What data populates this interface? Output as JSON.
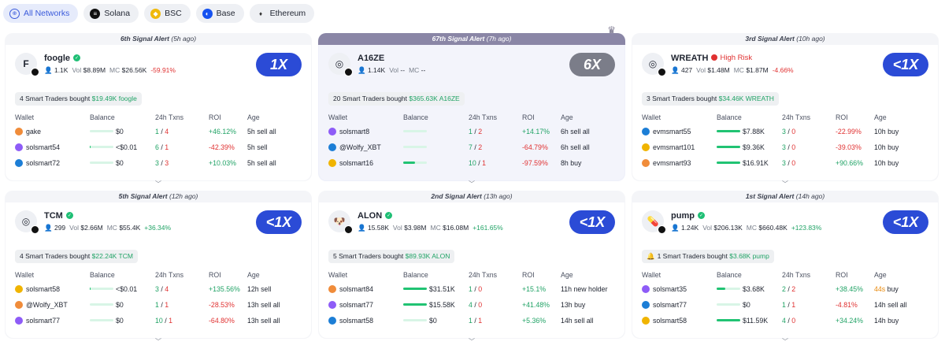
{
  "filters": [
    {
      "label": "All Networks",
      "icon": "globe-icon",
      "active": true
    },
    {
      "label": "Solana",
      "icon": "solana-icon"
    },
    {
      "label": "BSC",
      "icon": "bsc-icon"
    },
    {
      "label": "Base",
      "icon": "base-icon"
    },
    {
      "label": "Ethereum",
      "icon": "ethereum-icon"
    }
  ],
  "table_headers": {
    "wallet": "Wallet",
    "balance": "Balance",
    "txns": "24h Txns",
    "roi": "ROI",
    "age": "Age"
  },
  "cards": [
    {
      "alert": "6th Signal Alert",
      "ago": "(5h ago)",
      "token": "foogle",
      "verified": true,
      "logo": "F",
      "holders": "1.1K",
      "vol_label": "Vol",
      "vol": "$8.89M",
      "mc_label": "MC",
      "mc": "$26.56K",
      "change": "-59.91%",
      "multiplier": "1X",
      "bought_prefix": "4 Smart Traders bought",
      "bought_amount": "$19.49K foogle",
      "rows": [
        {
          "wallet": "gake",
          "balance": "$0",
          "buys": "1",
          "sep": "/",
          "sells": "4",
          "roi": "+46.12%",
          "age": "5h sell all",
          "bar": 0
        },
        {
          "wallet": "solsmart54",
          "balance": "<$0.01",
          "buys": "6",
          "sep": "/",
          "sells": "1",
          "roi": "-42.39%",
          "age": "5h sell",
          "bar": 0.02
        },
        {
          "wallet": "solsmart72",
          "balance": "$0",
          "buys": "3",
          "sep": "/",
          "sells": "3",
          "roi": "+10.03%",
          "age": "5h sell all",
          "bar": 0
        }
      ]
    },
    {
      "alert": "67th Signal Alert",
      "ago": "(7h ago)",
      "token": "A16ZE",
      "verified": false,
      "logo": "◎",
      "holders": "1.14K",
      "vol_label": "Vol",
      "vol": "--",
      "mc_label": "MC",
      "mc": "--",
      "change": "",
      "multiplier": "6X",
      "bought_prefix": "20 Smart Traders bought",
      "bought_amount": "$365.63K A16ZE",
      "rows": [
        {
          "wallet": "solsmart8",
          "balance": "",
          "buys": "1",
          "sep": "/",
          "sells": "2",
          "roi": "+14.17%",
          "age": "6h sell all",
          "bar": 0
        },
        {
          "wallet": "@Wolfy_XBT",
          "balance": "",
          "buys": "7",
          "sep": "/",
          "sells": "2",
          "roi": "-64.79%",
          "age": "6h sell all",
          "bar": 0
        },
        {
          "wallet": "solsmart16",
          "balance": "",
          "buys": "10",
          "sep": "/",
          "sells": "1",
          "roi": "-97.59%",
          "age": "8h buy",
          "bar": 0.5
        }
      ]
    },
    {
      "alert": "3rd Signal Alert",
      "ago": "(10h ago)",
      "token": "WREATH",
      "verified": false,
      "high_risk": "High Risk",
      "logo": "◎",
      "holders": "427",
      "vol_label": "Vol",
      "vol": "$1.48M",
      "mc_label": "MC",
      "mc": "$1.87M",
      "change": "-4.66%",
      "multiplier": "<1X",
      "bought_prefix": "3 Smart Traders bought",
      "bought_amount": "$34.46K WREATH",
      "rows": [
        {
          "wallet": "evmsmart55",
          "balance": "$7.88K",
          "buys": "3",
          "sep": "/",
          "sells": "0",
          "roi": "-22.99%",
          "age": "10h buy",
          "bar": 1
        },
        {
          "wallet": "evmsmart101",
          "balance": "$9.36K",
          "buys": "3",
          "sep": "/",
          "sells": "0",
          "roi": "-39.03%",
          "age": "10h buy",
          "bar": 1
        },
        {
          "wallet": "evmsmart93",
          "balance": "$16.91K",
          "buys": "3",
          "sep": "/",
          "sells": "0",
          "roi": "+90.66%",
          "age": "10h buy",
          "bar": 1
        }
      ]
    },
    {
      "alert": "5th Signal Alert",
      "ago": "(12h ago)",
      "token": "TCM",
      "verified": true,
      "logo": "◎",
      "holders": "299",
      "vol_label": "Vol",
      "vol": "$2.66M",
      "mc_label": "MC",
      "mc": "$55.4K",
      "change": "+36.34%",
      "multiplier": "<1X",
      "bought_prefix": "4 Smart Traders bought",
      "bought_amount": "$22.24K TCM",
      "rows": [
        {
          "wallet": "solsmart58",
          "balance": "<$0.01",
          "buys": "3",
          "sep": "/",
          "sells": "4",
          "roi": "+135.56%",
          "age": "12h sell",
          "bar": 0.02
        },
        {
          "wallet": "@Wolfy_XBT",
          "balance": "$0",
          "buys": "1",
          "sep": "/",
          "sells": "1",
          "roi": "-28.53%",
          "age": "13h sell all",
          "bar": 0
        },
        {
          "wallet": "solsmart77",
          "balance": "$0",
          "buys": "10",
          "sep": "/",
          "sells": "1",
          "roi": "-64.80%",
          "age": "13h sell all",
          "bar": 0
        }
      ]
    },
    {
      "alert": "2nd Signal Alert",
      "ago": "(13h ago)",
      "token": "ALON",
      "verified": true,
      "logo": "🐶",
      "holders": "15.58K",
      "vol_label": "Vol",
      "vol": "$3.98M",
      "mc_label": "MC",
      "mc": "$16.08M",
      "change": "+161.65%",
      "multiplier": "<1X",
      "bought_prefix": "5 Smart Traders bought",
      "bought_amount": "$89.93K ALON",
      "rows": [
        {
          "wallet": "solsmart84",
          "balance": "$31.51K",
          "buys": "1",
          "sep": "/",
          "sells": "0",
          "roi": "+15.1%",
          "age": "11h new holder",
          "bar": 1
        },
        {
          "wallet": "solsmart77",
          "balance": "$15.58K",
          "buys": "4",
          "sep": "/",
          "sells": "0",
          "roi": "+41.48%",
          "age": "13h buy",
          "bar": 1
        },
        {
          "wallet": "solsmart58",
          "balance": "$0",
          "buys": "1",
          "sep": "/",
          "sells": "1",
          "roi": "+5.36%",
          "age": "14h sell all",
          "bar": 0
        }
      ]
    },
    {
      "alert": "1st Signal Alert",
      "ago": "(14h ago)",
      "token": "pump",
      "verified": true,
      "logo": "💊",
      "holders": "1.24K",
      "vol_label": "Vol",
      "vol": "$206.13K",
      "mc_label": "MC",
      "mc": "$660.48K",
      "change": "+123.83%",
      "multiplier": "<1X",
      "bought_prefix": "1 Smart Traders bought",
      "bought_amount": "$3.68K pump",
      "bell": true,
      "rows": [
        {
          "wallet": "solsmart35",
          "balance": "$3.68K",
          "buys": "2",
          "sep": "/",
          "sells": "2",
          "roi": "+38.45%",
          "age_num": "44s",
          "age": "buy",
          "bar": 0.35
        },
        {
          "wallet": "solsmart77",
          "balance": "$0",
          "buys": "1",
          "sep": "/",
          "sells": "1",
          "roi": "-4.81%",
          "age": "14h sell all",
          "bar": 0
        },
        {
          "wallet": "solsmart58",
          "balance": "$11.59K",
          "buys": "4",
          "sep": "/",
          "sells": "0",
          "roi": "+34.24%",
          "age": "14h buy",
          "bar": 1
        }
      ]
    }
  ]
}
